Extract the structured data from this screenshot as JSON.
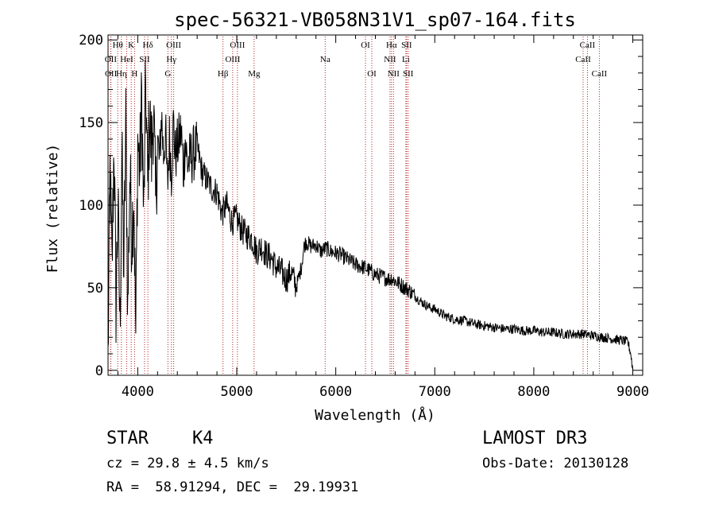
{
  "chart_data": {
    "type": "line",
    "title": "spec-56321-VB058N31V1_sp07-164.fits",
    "xlabel": "Wavelength (Å)",
    "ylabel": "Flux (relative)",
    "xlim": [
      3700,
      9100
    ],
    "ylim": [
      -3,
      203
    ],
    "x_ticks": [
      4000,
      5000,
      6000,
      7000,
      8000,
      9000
    ],
    "y_ticks": [
      0,
      50,
      100,
      150,
      200
    ],
    "series": [
      {
        "name": "flux",
        "x": [
          3700,
          3720,
          3740,
          3760,
          3780,
          3800,
          3820,
          3840,
          3860,
          3880,
          3900,
          3920,
          3940,
          3960,
          3980,
          4000,
          4020,
          4040,
          4060,
          4080,
          4100,
          4120,
          4140,
          4160,
          4180,
          4200,
          4220,
          4240,
          4260,
          4280,
          4300,
          4320,
          4340,
          4360,
          4380,
          4400,
          4420,
          4440,
          4460,
          4480,
          4500,
          4550,
          4600,
          4650,
          4700,
          4750,
          4800,
          4850,
          4900,
          4950,
          5000,
          5050,
          5100,
          5150,
          5200,
          5250,
          5300,
          5350,
          5400,
          5450,
          5500,
          5550,
          5600,
          5650,
          5680,
          5700,
          5750,
          5800,
          5850,
          5900,
          5950,
          6000,
          6050,
          6100,
          6150,
          6200,
          6250,
          6300,
          6350,
          6400,
          6450,
          6500,
          6550,
          6560,
          6600,
          6650,
          6700,
          6750,
          6800,
          6850,
          6900,
          6950,
          7000,
          7100,
          7200,
          7300,
          7400,
          7500,
          7600,
          7700,
          7800,
          7900,
          8000,
          8100,
          8200,
          8300,
          8400,
          8500,
          8600,
          8700,
          8800,
          8900,
          8950,
          8980,
          9000
        ],
        "y": [
          5,
          120,
          60,
          140,
          40,
          100,
          25,
          130,
          60,
          150,
          35,
          120,
          80,
          110,
          20,
          140,
          120,
          165,
          90,
          175,
          110,
          155,
          130,
          160,
          100,
          140,
          125,
          155,
          130,
          145,
          110,
          140,
          120,
          150,
          130,
          135,
          140,
          145,
          120,
          140,
          125,
          130,
          135,
          120,
          115,
          110,
          108,
          95,
          100,
          90,
          92,
          85,
          82,
          80,
          72,
          75,
          70,
          68,
          62,
          60,
          55,
          60,
          50,
          62,
          75,
          78,
          75,
          76,
          72,
          74,
          72,
          71,
          70,
          68,
          66,
          64,
          63,
          62,
          60,
          58,
          57,
          56,
          55,
          56,
          54,
          52,
          50,
          48,
          45,
          42,
          40,
          38,
          37,
          33,
          31,
          30,
          28,
          27,
          26,
          25,
          25,
          24,
          24,
          23,
          23,
          22,
          22,
          22,
          21,
          20,
          19,
          18,
          17,
          10,
          0
        ]
      }
    ],
    "lines": [
      {
        "label": "Hθ",
        "x": 3798,
        "row": 1
      },
      {
        "label": "OII",
        "x": 3727,
        "row": 2
      },
      {
        "label": "OII",
        "x": 3729,
        "row": 3
      },
      {
        "label": "Hη",
        "x": 3835,
        "row": 3
      },
      {
        "label": "HeI",
        "x": 3889,
        "row": 2
      },
      {
        "label": "K",
        "x": 3934,
        "row": 1
      },
      {
        "label": "H",
        "x": 3968,
        "row": 3
      },
      {
        "label": "SII",
        "x": 4069,
        "row": 2
      },
      {
        "label": "Hδ",
        "x": 4102,
        "row": 1
      },
      {
        "label": "OIII",
        "x": 4363,
        "row": 1
      },
      {
        "label": "Hγ",
        "x": 4340,
        "row": 2
      },
      {
        "label": "G",
        "x": 4305,
        "row": 3
      },
      {
        "label": "OIII",
        "x": 5007,
        "row": 1
      },
      {
        "label": "OIII",
        "x": 4959,
        "row": 2
      },
      {
        "label": "Hβ",
        "x": 4861,
        "row": 3
      },
      {
        "label": "Mg",
        "x": 5175,
        "row": 3
      },
      {
        "label": "Na",
        "x": 5893,
        "row": 2
      },
      {
        "label": "OI",
        "x": 6300,
        "row": 1
      },
      {
        "label": "OI",
        "x": 6364,
        "row": 3
      },
      {
        "label": "Hα",
        "x": 6563,
        "row": 1
      },
      {
        "label": "SII",
        "x": 6716,
        "row": 1
      },
      {
        "label": "NII",
        "x": 6548,
        "row": 2
      },
      {
        "label": "Li",
        "x": 6708,
        "row": 2
      },
      {
        "label": "NII",
        "x": 6583,
        "row": 3
      },
      {
        "label": "SII",
        "x": 6731,
        "row": 3
      },
      {
        "label": "CaII",
        "x": 8542,
        "row": 1
      },
      {
        "label": "CaII",
        "x": 8498,
        "row": 2
      },
      {
        "label": "CaII",
        "x": 8662,
        "row": 3
      }
    ]
  },
  "info": {
    "class": "STAR",
    "subclass": "K4",
    "survey": "LAMOST DR3",
    "redshift": "cz = 29.8 ± 4.5 km/s",
    "obs_date": "Obs-Date: 20130128",
    "coords": "RA =  58.91294, DEC =  29.19931"
  }
}
